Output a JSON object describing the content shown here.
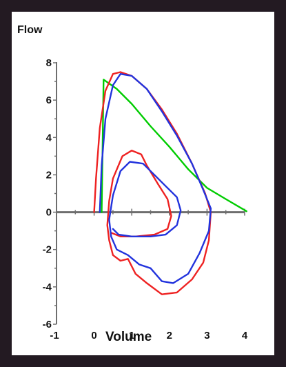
{
  "chart_data": {
    "type": "line",
    "title": "Flow",
    "xlabel": "Volume",
    "ylabel": "Flow",
    "xlim": [
      -1,
      4
    ],
    "ylim": [
      -6,
      8
    ],
    "x_ticks": [
      -1,
      0,
      1,
      2,
      3,
      4
    ],
    "y_ticks": [
      -6,
      -4,
      -2,
      0,
      2,
      4,
      6,
      8
    ],
    "grid": false,
    "legend": "none",
    "series": [
      {
        "color": "#00cc00",
        "points": [
          [
            0.2,
            0
          ],
          [
            0.25,
            7.1
          ],
          [
            0.6,
            6.6
          ],
          [
            1.0,
            5.8
          ],
          [
            1.5,
            4.6
          ],
          [
            2.0,
            3.5
          ],
          [
            2.5,
            2.3
          ],
          [
            3.0,
            1.3
          ],
          [
            3.5,
            0.7
          ],
          [
            4.05,
            0.05
          ]
        ]
      },
      {
        "color": "#ee2222",
        "points": [
          [
            0.0,
            0
          ],
          [
            0.05,
            1.8
          ],
          [
            0.15,
            4.5
          ],
          [
            0.3,
            6.5
          ],
          [
            0.5,
            7.4
          ],
          [
            0.7,
            7.5
          ],
          [
            1.0,
            7.3
          ],
          [
            1.4,
            6.6
          ],
          [
            1.8,
            5.5
          ],
          [
            2.2,
            4.2
          ],
          [
            2.6,
            2.6
          ],
          [
            2.95,
            1.0
          ],
          [
            3.1,
            0
          ],
          [
            3.05,
            -1.5
          ],
          [
            2.9,
            -2.7
          ],
          [
            2.6,
            -3.6
          ],
          [
            2.2,
            -4.3
          ],
          [
            1.8,
            -4.4
          ],
          [
            1.4,
            -3.8
          ],
          [
            1.1,
            -3.3
          ],
          [
            0.9,
            -2.5
          ],
          [
            0.7,
            -2.6
          ],
          [
            0.5,
            -2.3
          ],
          [
            0.4,
            -1.5
          ],
          [
            0.35,
            -0.7
          ],
          [
            0.4,
            0.6
          ],
          [
            0.5,
            1.8
          ],
          [
            0.75,
            3.0
          ],
          [
            1.0,
            3.3
          ],
          [
            1.25,
            3.1
          ],
          [
            1.4,
            2.5
          ],
          [
            1.7,
            1.5
          ],
          [
            1.95,
            0.7
          ],
          [
            2.05,
            -0.2
          ],
          [
            1.95,
            -0.9
          ],
          [
            1.6,
            -1.2
          ],
          [
            1.1,
            -1.3
          ],
          [
            0.7,
            -1.3
          ],
          [
            0.45,
            -1.1
          ]
        ]
      },
      {
        "color": "#2233dd",
        "points": [
          [
            0.15,
            0
          ],
          [
            0.2,
            2.5
          ],
          [
            0.3,
            5.0
          ],
          [
            0.5,
            6.8
          ],
          [
            0.7,
            7.4
          ],
          [
            1.0,
            7.3
          ],
          [
            1.4,
            6.6
          ],
          [
            1.8,
            5.4
          ],
          [
            2.2,
            4.1
          ],
          [
            2.6,
            2.6
          ],
          [
            2.9,
            1.2
          ],
          [
            3.1,
            0.2
          ],
          [
            3.05,
            -1.0
          ],
          [
            2.8,
            -2.2
          ],
          [
            2.5,
            -3.3
          ],
          [
            2.1,
            -3.8
          ],
          [
            1.8,
            -3.7
          ],
          [
            1.5,
            -3.0
          ],
          [
            1.2,
            -2.8
          ],
          [
            0.9,
            -2.3
          ],
          [
            0.6,
            -2.0
          ],
          [
            0.45,
            -1.3
          ],
          [
            0.4,
            -0.4
          ],
          [
            0.5,
            0.9
          ],
          [
            0.7,
            2.2
          ],
          [
            0.95,
            2.7
          ],
          [
            1.3,
            2.6
          ],
          [
            1.55,
            2.1
          ],
          [
            1.9,
            1.4
          ],
          [
            2.2,
            0.8
          ],
          [
            2.3,
            0.1
          ],
          [
            2.2,
            -0.7
          ],
          [
            1.9,
            -1.2
          ],
          [
            1.5,
            -1.3
          ],
          [
            1.0,
            -1.3
          ],
          [
            0.65,
            -1.2
          ],
          [
            0.5,
            -0.9
          ]
        ]
      }
    ]
  }
}
